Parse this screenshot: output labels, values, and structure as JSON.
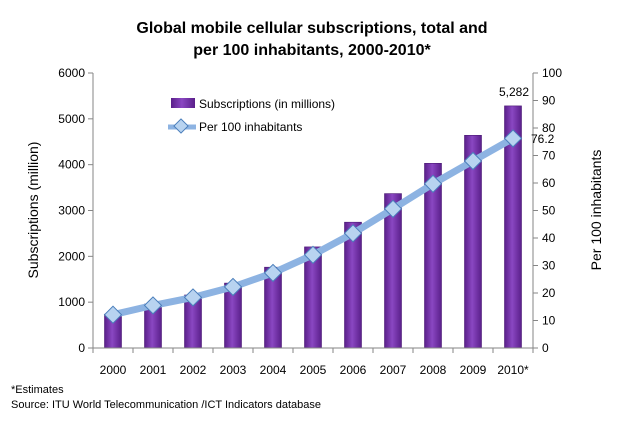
{
  "chart_data": {
    "type": "bar",
    "title_line1": "Global mobile cellular subscriptions, total and",
    "title_line2": "per 100 inhabitants, 2000-2010*",
    "categories": [
      "2000",
      "2001",
      "2002",
      "2003",
      "2004",
      "2005",
      "2006",
      "2007",
      "2008",
      "2009",
      "2010*"
    ],
    "series": [
      {
        "name": "Subscriptions (in millions)",
        "kind": "bar",
        "axis": "left",
        "color": "#7030a0",
        "values": [
          738,
          961,
          1157,
          1417,
          1763,
          2205,
          2745,
          3368,
          4030,
          4640,
          5282
        ]
      },
      {
        "name": "Per 100 inhabitants",
        "kind": "line",
        "axis": "right",
        "color": "#8db3e2",
        "marker_color": "#b8d3f0",
        "values": [
          12.1,
          15.5,
          18.4,
          22.2,
          27.3,
          33.9,
          41.7,
          50.6,
          59.7,
          68.0,
          76.2
        ]
      }
    ],
    "y_left": {
      "label": "Subscriptions (million)",
      "range": [
        0,
        6000
      ],
      "ticks": [
        "0",
        "1000",
        "2000",
        "3000",
        "4000",
        "5000",
        "6000"
      ]
    },
    "y_right": {
      "label": "Per 100 inhabitants",
      "range": [
        0,
        100
      ],
      "ticks": [
        "0",
        "10",
        "20",
        "30",
        "40",
        "50",
        "60",
        "70",
        "80",
        "90",
        "100"
      ]
    },
    "data_labels": {
      "last_bar": "5,282",
      "last_point": "76.2"
    },
    "legend_position": "top-left",
    "grid": false
  },
  "notes": {
    "estimates": "*Estimates",
    "source": "Source:  ITU World Telecommunication /ICT Indicators database"
  }
}
